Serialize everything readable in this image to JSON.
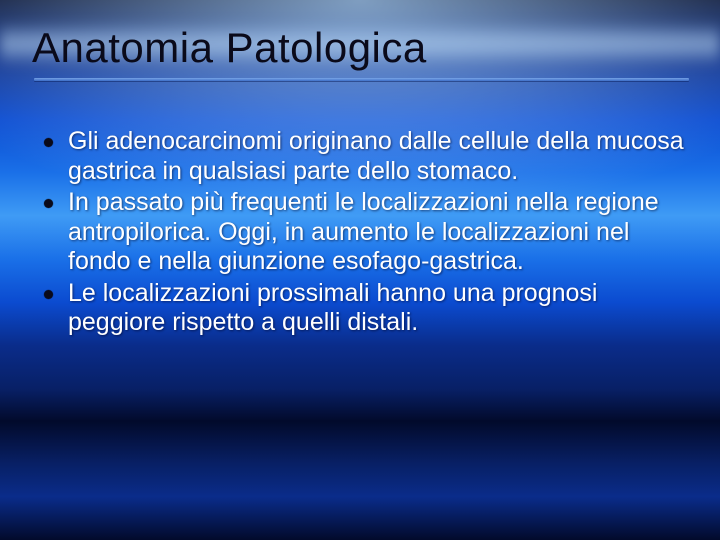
{
  "slide": {
    "title": "Anatomia Patologica",
    "bullets": [
      "Gli adenocarcinomi originano dalle cellule della mucosa gastrica in qualsiasi parte dello stomaco.",
      "In passato più frequenti le localizzazioni nella regione antropilorica. Oggi, in aumento le localizzazioni nel fondo e nella giunzione esofago-gastrica.",
      "Le localizzazioni prossimali hanno una prognosi peggiore rispetto a quelli distali."
    ]
  },
  "style": {
    "title_color": "#0a0a1a",
    "body_text_color": "#ffffff",
    "bullet_marker_color": "#0a0a1a",
    "underline_gradient_from": "#7daaeb",
    "underline_gradient_to": "#3c6ec8",
    "background_gradient_stops": [
      "#020a2b",
      "#082066",
      "#0a2c8a",
      "#0b4bd0",
      "#1a70e8",
      "#3f9bf5"
    ],
    "title_fontsize": 42,
    "body_fontsize": 25,
    "font_family": "Comic Sans MS"
  }
}
